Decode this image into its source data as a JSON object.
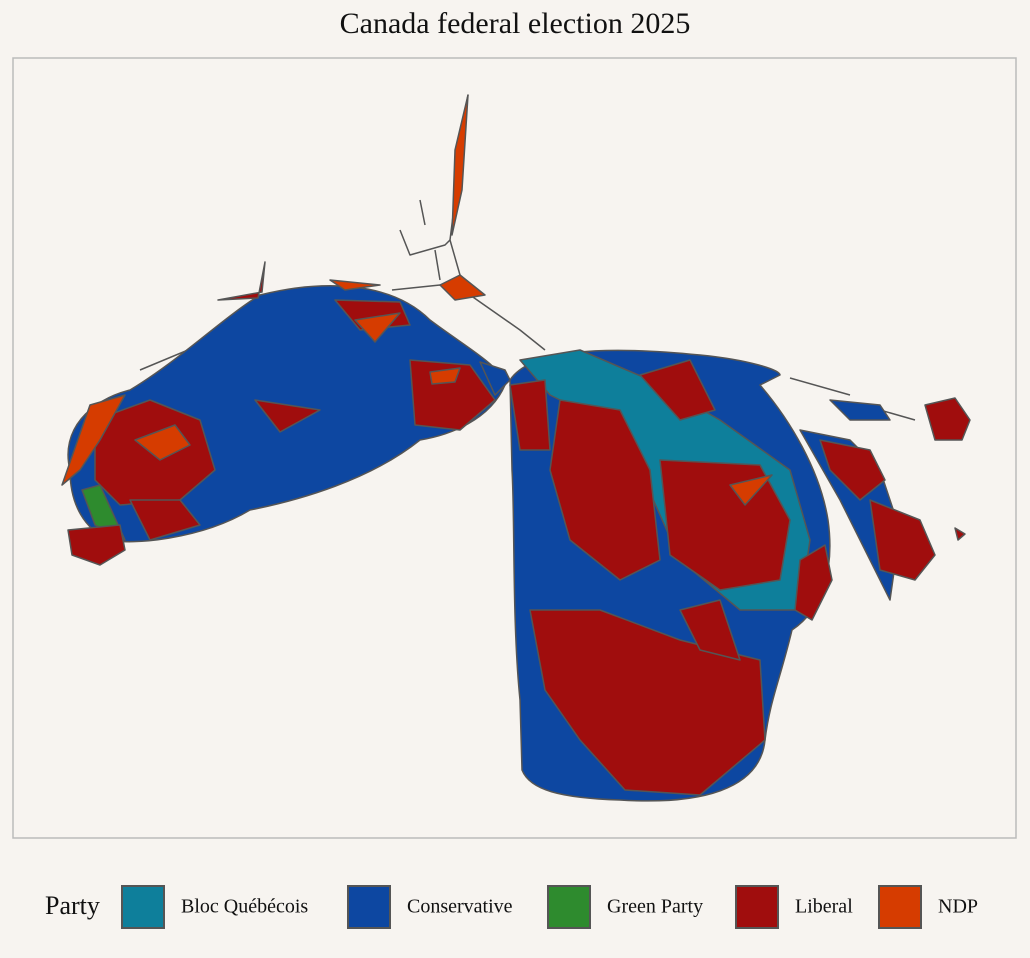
{
  "title": "Canada federal election 2025",
  "legend": {
    "title": "Party",
    "items": [
      {
        "label": "Bloc Québécois",
        "color": "#0e7f9b"
      },
      {
        "label": "Conservative",
        "color": "#0d47a1"
      },
      {
        "label": "Green Party",
        "color": "#2e8b2e"
      },
      {
        "label": "Liberal",
        "color": "#a00d0d"
      },
      {
        "label": "NDP",
        "color": "#d63c00"
      }
    ]
  }
}
